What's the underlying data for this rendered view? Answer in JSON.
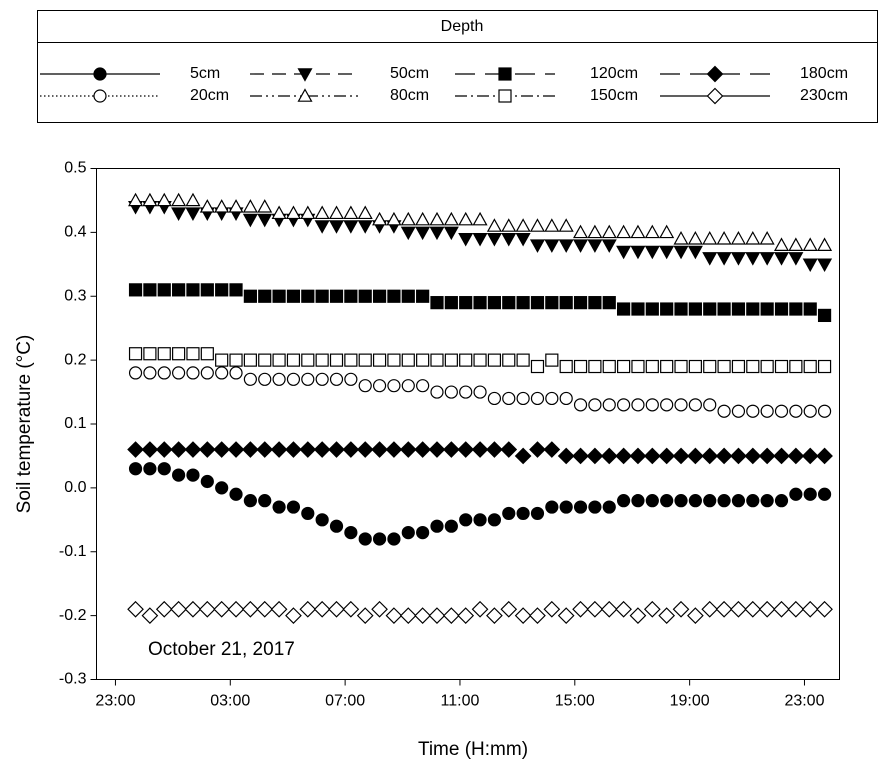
{
  "chart_data": {
    "type": "scatter",
    "legend_title": "Depth",
    "x_label": "Time (H:mm)",
    "y_label": "Soil temperature (°C)",
    "annotation": "October 21, 2017",
    "xlim": [
      22.34,
      48.22
    ],
    "ylim": [
      -0.3,
      0.5
    ],
    "xticks": [
      {
        "value": 23,
        "label": "23:00"
      },
      {
        "value": 27,
        "label": "03:00"
      },
      {
        "value": 31,
        "label": "07:00"
      },
      {
        "value": 35,
        "label": "11:00"
      },
      {
        "value": 39,
        "label": "15:00"
      },
      {
        "value": 43,
        "label": "19:00"
      },
      {
        "value": 47,
        "label": "23:00"
      }
    ],
    "yticks": [
      -0.3,
      -0.2,
      -0.1,
      {
        "value": 0,
        "label": "0.0"
      },
      0.1,
      0.2,
      0.3,
      0.4,
      0.5
    ],
    "x": [
      23.7,
      24.2,
      24.7,
      25.2,
      25.7,
      26.2,
      26.7,
      27.2,
      27.7,
      28.2,
      28.7,
      29.2,
      29.7,
      30.2,
      30.7,
      31.2,
      31.7,
      32.2,
      32.7,
      33.2,
      33.7,
      34.2,
      34.7,
      35.2,
      35.7,
      36.2,
      36.7,
      37.2,
      37.7,
      38.2,
      38.7,
      39.2,
      39.7,
      40.2,
      40.7,
      41.2,
      41.7,
      42.2,
      42.7,
      43.2,
      43.7,
      44.2,
      44.7,
      45.2,
      45.7,
      46.2,
      46.7,
      47.2,
      47.7
    ],
    "series": [
      {
        "name": "5cm",
        "color": "#000000",
        "marker": "circle",
        "filled": true,
        "dash": "solid",
        "values": [
          0.03,
          0.03,
          0.03,
          0.02,
          0.02,
          0.01,
          0,
          -0.01,
          -0.02,
          -0.02,
          -0.03,
          -0.03,
          -0.04,
          -0.05,
          -0.06,
          -0.07,
          -0.08,
          -0.08,
          -0.08,
          -0.07,
          -0.07,
          -0.06,
          -0.06,
          -0.05,
          -0.05,
          -0.05,
          -0.04,
          -0.04,
          -0.04,
          -0.03,
          -0.03,
          -0.03,
          -0.03,
          -0.03,
          -0.02,
          -0.02,
          -0.02,
          -0.02,
          -0.02,
          -0.02,
          -0.02,
          -0.02,
          -0.02,
          -0.02,
          -0.02,
          -0.02,
          -0.01,
          -0.01,
          -0.01
        ]
      },
      {
        "name": "20cm",
        "color": "#000000",
        "marker": "circle",
        "filled": false,
        "dash": "dotted",
        "values": [
          0.18,
          0.18,
          0.18,
          0.18,
          0.18,
          0.18,
          0.18,
          0.18,
          0.17,
          0.17,
          0.17,
          0.17,
          0.17,
          0.17,
          0.17,
          0.17,
          0.16,
          0.16,
          0.16,
          0.16,
          0.16,
          0.15,
          0.15,
          0.15,
          0.15,
          0.14,
          0.14,
          0.14,
          0.14,
          0.14,
          0.14,
          0.13,
          0.13,
          0.13,
          0.13,
          0.13,
          0.13,
          0.13,
          0.13,
          0.13,
          0.13,
          0.12,
          0.12,
          0.12,
          0.12,
          0.12,
          0.12,
          0.12,
          0.12
        ]
      },
      {
        "name": "50cm",
        "color": "#000000",
        "marker": "triangle-down",
        "filled": true,
        "dash": "dashed",
        "values": [
          0.44,
          0.44,
          0.44,
          0.43,
          0.43,
          0.43,
          0.43,
          0.43,
          0.42,
          0.42,
          0.42,
          0.42,
          0.42,
          0.41,
          0.41,
          0.41,
          0.41,
          0.41,
          0.41,
          0.4,
          0.4,
          0.4,
          0.4,
          0.39,
          0.39,
          0.39,
          0.39,
          0.39,
          0.38,
          0.38,
          0.38,
          0.38,
          0.38,
          0.38,
          0.37,
          0.37,
          0.37,
          0.37,
          0.37,
          0.37,
          0.36,
          0.36,
          0.36,
          0.36,
          0.36,
          0.36,
          0.36,
          0.35,
          0.35
        ]
      },
      {
        "name": "80cm",
        "color": "#000000",
        "marker": "triangle-up",
        "filled": false,
        "dash": "dashdotdot",
        "values": [
          0.45,
          0.45,
          0.45,
          0.45,
          0.45,
          0.44,
          0.44,
          0.44,
          0.44,
          0.44,
          0.43,
          0.43,
          0.43,
          0.43,
          0.43,
          0.43,
          0.43,
          0.42,
          0.42,
          0.42,
          0.42,
          0.42,
          0.42,
          0.42,
          0.42,
          0.41,
          0.41,
          0.41,
          0.41,
          0.41,
          0.41,
          0.4,
          0.4,
          0.4,
          0.4,
          0.4,
          0.4,
          0.4,
          0.39,
          0.39,
          0.39,
          0.39,
          0.39,
          0.39,
          0.39,
          0.38,
          0.38,
          0.38,
          0.38
        ]
      },
      {
        "name": "120cm",
        "color": "#000000",
        "marker": "square",
        "filled": true,
        "dash": "longdash",
        "values": [
          0.31,
          0.31,
          0.31,
          0.31,
          0.31,
          0.31,
          0.31,
          0.31,
          0.3,
          0.3,
          0.3,
          0.3,
          0.3,
          0.3,
          0.3,
          0.3,
          0.3,
          0.3,
          0.3,
          0.3,
          0.3,
          0.29,
          0.29,
          0.29,
          0.29,
          0.29,
          0.29,
          0.29,
          0.29,
          0.29,
          0.29,
          0.29,
          0.29,
          0.29,
          0.28,
          0.28,
          0.28,
          0.28,
          0.28,
          0.28,
          0.28,
          0.28,
          0.28,
          0.28,
          0.28,
          0.28,
          0.28,
          0.28,
          0.27
        ]
      },
      {
        "name": "150cm",
        "color": "#000000",
        "marker": "square",
        "filled": false,
        "dash": "dashdot",
        "values": [
          0.21,
          0.21,
          0.21,
          0.21,
          0.21,
          0.21,
          0.2,
          0.2,
          0.2,
          0.2,
          0.2,
          0.2,
          0.2,
          0.2,
          0.2,
          0.2,
          0.2,
          0.2,
          0.2,
          0.2,
          0.2,
          0.2,
          0.2,
          0.2,
          0.2,
          0.2,
          0.2,
          0.2,
          0.19,
          0.2,
          0.19,
          0.19,
          0.19,
          0.19,
          0.19,
          0.19,
          0.19,
          0.19,
          0.19,
          0.19,
          0.19,
          0.19,
          0.19,
          0.19,
          0.19,
          0.19,
          0.19,
          0.19,
          0.19
        ]
      },
      {
        "name": "180cm",
        "color": "#000000",
        "marker": "diamond",
        "filled": true,
        "dash": "longdash",
        "values": [
          0.06,
          0.06,
          0.06,
          0.06,
          0.06,
          0.06,
          0.06,
          0.06,
          0.06,
          0.06,
          0.06,
          0.06,
          0.06,
          0.06,
          0.06,
          0.06,
          0.06,
          0.06,
          0.06,
          0.06,
          0.06,
          0.06,
          0.06,
          0.06,
          0.06,
          0.06,
          0.06,
          0.05,
          0.06,
          0.06,
          0.05,
          0.05,
          0.05,
          0.05,
          0.05,
          0.05,
          0.05,
          0.05,
          0.05,
          0.05,
          0.05,
          0.05,
          0.05,
          0.05,
          0.05,
          0.05,
          0.05,
          0.05,
          0.05
        ]
      },
      {
        "name": "230cm",
        "color": "#000000",
        "marker": "diamond",
        "filled": false,
        "dash": "solid",
        "values": [
          -0.19,
          -0.2,
          -0.19,
          -0.19,
          -0.19,
          -0.19,
          -0.19,
          -0.19,
          -0.19,
          -0.19,
          -0.19,
          -0.2,
          -0.19,
          -0.19,
          -0.19,
          -0.19,
          -0.2,
          -0.19,
          -0.2,
          -0.2,
          -0.2,
          -0.2,
          -0.2,
          -0.2,
          -0.19,
          -0.2,
          -0.19,
          -0.2,
          -0.2,
          -0.19,
          -0.2,
          -0.19,
          -0.19,
          -0.19,
          -0.19,
          -0.2,
          -0.19,
          -0.2,
          -0.19,
          -0.2,
          -0.19,
          -0.19,
          -0.19,
          -0.19,
          -0.19,
          -0.19,
          -0.19,
          -0.19,
          -0.19
        ]
      }
    ]
  }
}
